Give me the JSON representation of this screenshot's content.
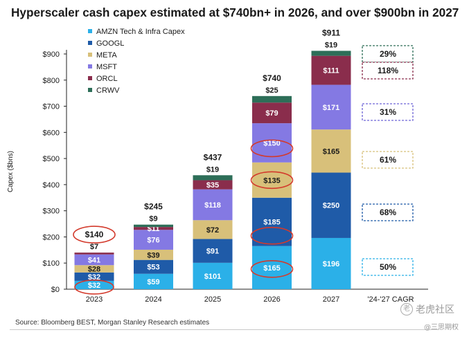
{
  "title": "Hyperscaler cash capex estimated at $740bn+ in 2026, and over $900bn in 2027",
  "source": "Source: Bloomberg BEST, Morgan Stanley Research estimates",
  "watermark": {
    "logo": "老",
    "text": "老虎社区",
    "handle": "@三思期权"
  },
  "chart_data": {
    "type": "bar",
    "stacked": true,
    "title": "Hyperscaler cash capex estimated at $740bn+ in 2026, and over $900bn in 2027",
    "xlabel": "",
    "ylabel": "Capex ($bns)",
    "ylim": [
      0,
      900
    ],
    "yticks": [
      0,
      100,
      200,
      300,
      400,
      500,
      600,
      700,
      800,
      900
    ],
    "ytick_labels": [
      "$0",
      "$100",
      "$200",
      "$300",
      "$400",
      "$500",
      "$600",
      "$700",
      "$800",
      "$900"
    ],
    "categories": [
      "2023",
      "2024",
      "2025",
      "2026",
      "2027"
    ],
    "series": [
      {
        "name": "AMZN Tech & Infra Capex",
        "color": "#2bb0e8",
        "values": [
          32,
          59,
          101,
          165,
          196
        ],
        "labels": [
          "$32",
          "$59",
          "$101",
          "$165",
          "$196"
        ]
      },
      {
        "name": "GOOGL",
        "color": "#1f5ba8",
        "values": [
          32,
          53,
          91,
          185,
          250
        ],
        "labels": [
          "$32",
          "$53",
          "$91",
          "$185",
          "$250"
        ]
      },
      {
        "name": "META",
        "color": "#d8c07a",
        "values": [
          28,
          39,
          72,
          135,
          165
        ],
        "labels": [
          "$28",
          "$39",
          "$72",
          "$135",
          "$165"
        ]
      },
      {
        "name": "MSFT",
        "color": "#8479e3",
        "values": [
          41,
          76,
          118,
          150,
          171
        ],
        "labels": [
          "$41",
          "$76",
          "$118",
          "$150",
          "$171"
        ]
      },
      {
        "name": "ORCL",
        "color": "#8a2d4c",
        "values": [
          7,
          11,
          35,
          79,
          111
        ],
        "labels": [
          "",
          "$11",
          "$35",
          "$79",
          "$111"
        ]
      },
      {
        "name": "CRWV",
        "color": "#2d6e58",
        "values": [
          0,
          9,
          19,
          25,
          19
        ],
        "labels": [
          "",
          "",
          "",
          "",
          ""
        ]
      }
    ],
    "totals": [
      "$140",
      "$245",
      "$437",
      "$740",
      "$911"
    ],
    "top_labels": [
      "$7",
      "$9",
      "$19",
      "$25",
      "$19"
    ],
    "highlighted_values": [
      "$140",
      "$32",
      "$150",
      "$135",
      "$185",
      "$165"
    ],
    "cagr": {
      "label": "'24-'27 CAGR",
      "values": [
        "29%",
        "118%",
        "31%",
        "61%",
        "68%",
        "50%"
      ],
      "series_order": [
        "CRWV",
        "ORCL",
        "MSFT",
        "META",
        "GOOGL",
        "AMZN Tech & Infra Capex"
      ],
      "box_colors": [
        "#2d6e58",
        "#8a2d4c",
        "#6d63d6",
        "#d8c07a",
        "#1f5ba8",
        "#2bb0e8"
      ]
    },
    "legend_position": "top-left",
    "grid": false
  }
}
